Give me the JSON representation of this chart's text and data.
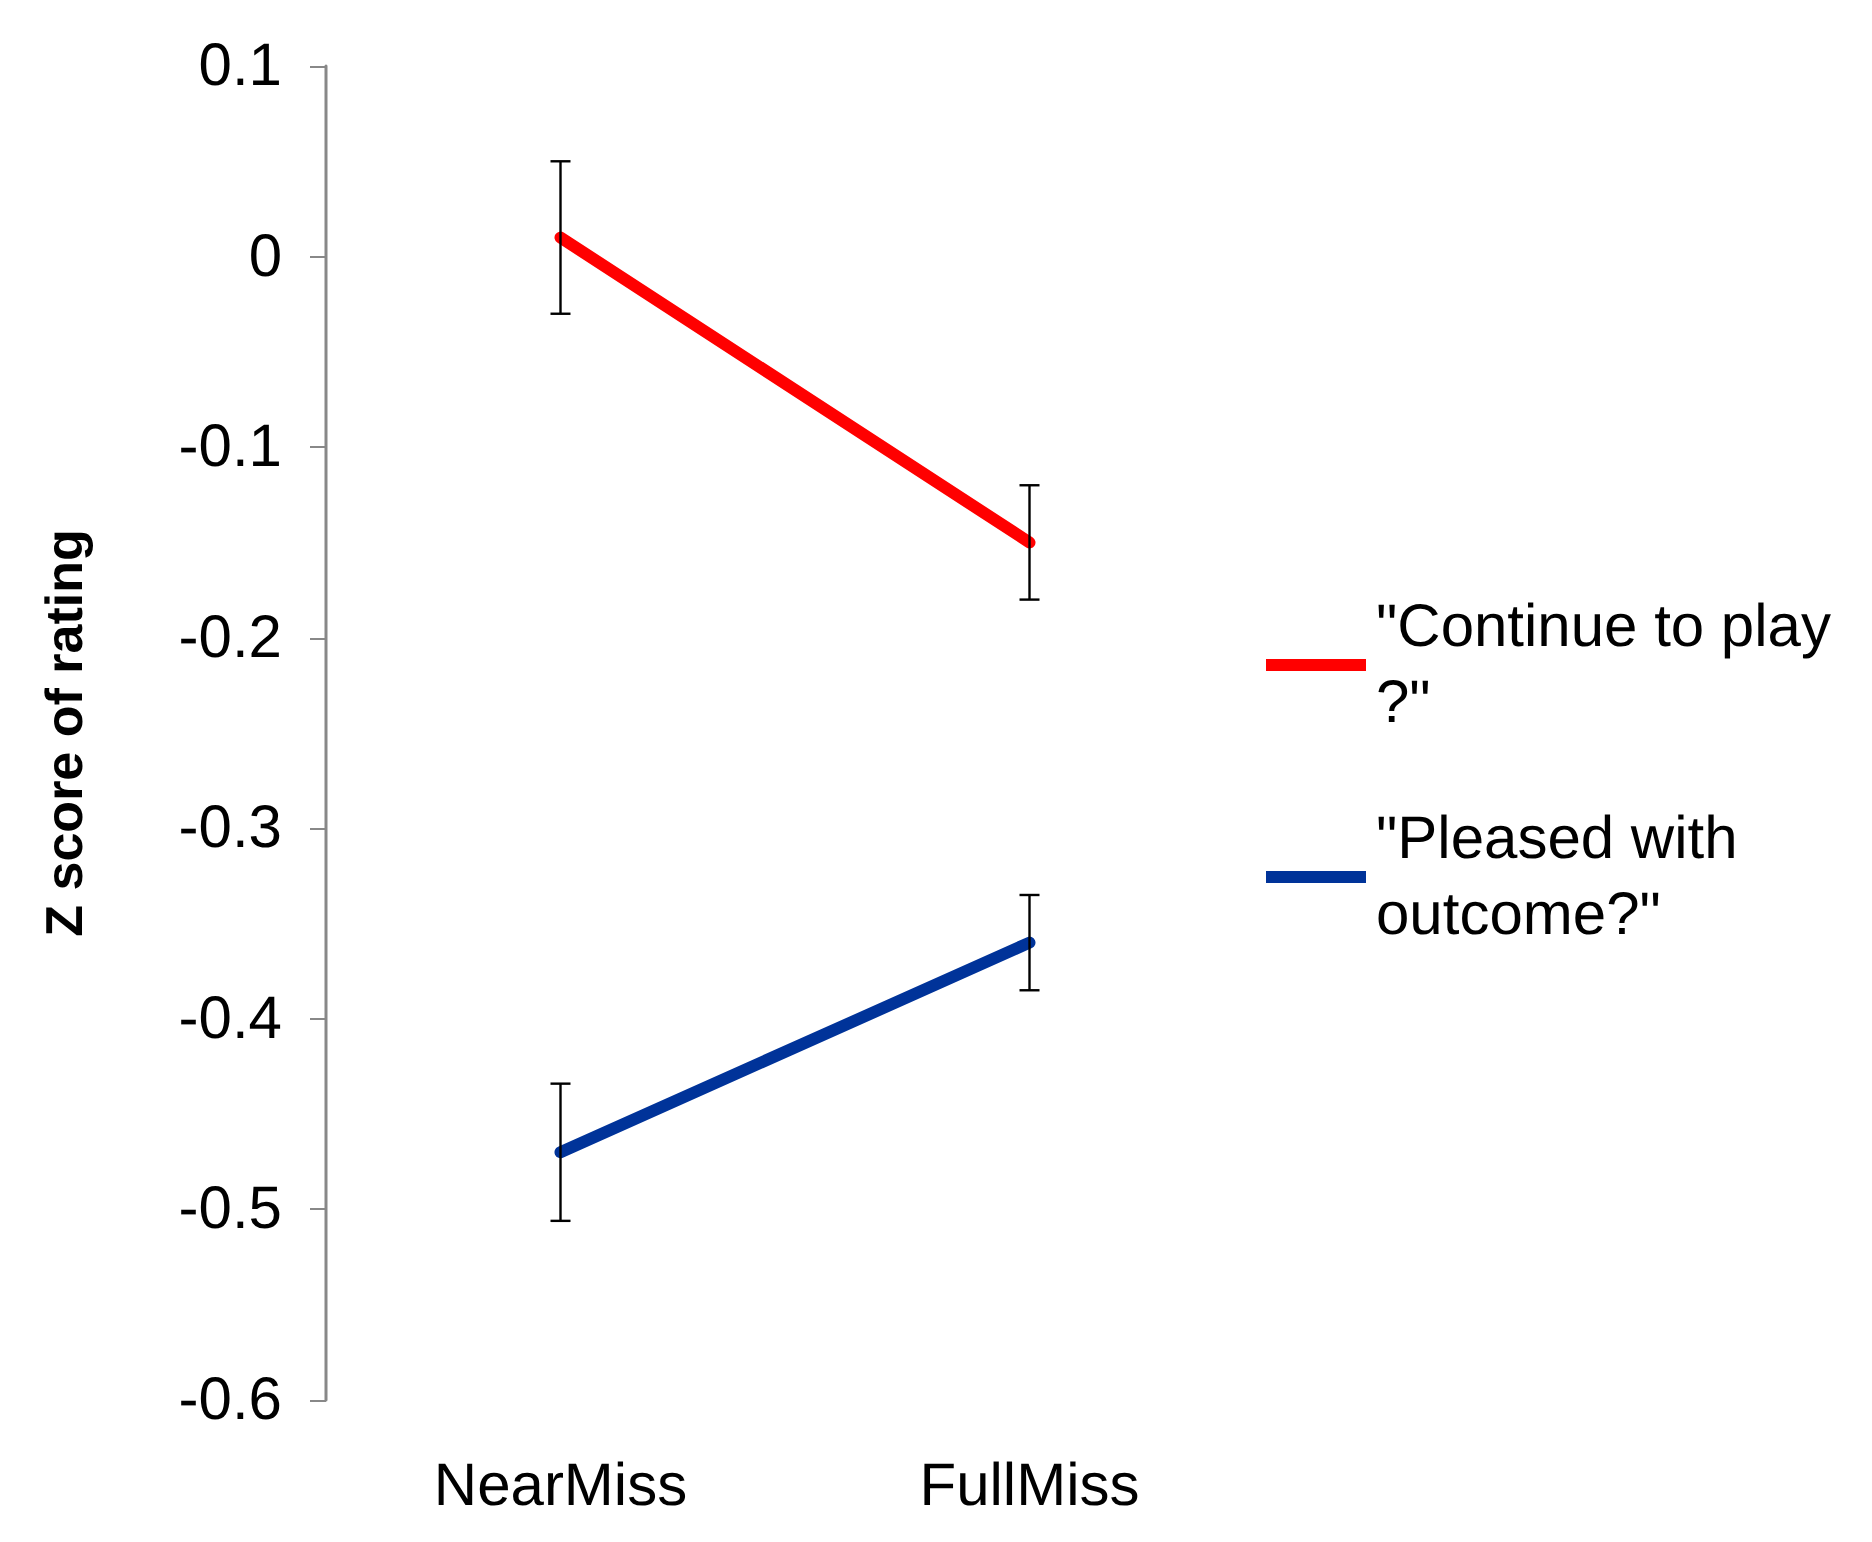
{
  "chart_data": {
    "type": "line",
    "ylabel": "Z score of rating",
    "categories": [
      "NearMiss",
      "FullMiss"
    ],
    "series": [
      {
        "name": "\"Continue to play?\"",
        "color": "#ff0000",
        "values": [
          0.01,
          -0.15
        ],
        "errors": [
          0.04,
          0.03
        ]
      },
      {
        "name": "\"Pleased with outcome?\"",
        "color": "#003399",
        "values": [
          -0.47,
          -0.36
        ],
        "errors": [
          0.036,
          0.025
        ]
      }
    ],
    "ylim": [
      -0.6,
      0.1
    ],
    "yticks": [
      -0.6,
      -0.5,
      -0.4,
      -0.3,
      -0.2,
      -0.1,
      0,
      0.1
    ],
    "grid": false,
    "legend": "right",
    "marker": "none",
    "line_style": "solid"
  }
}
